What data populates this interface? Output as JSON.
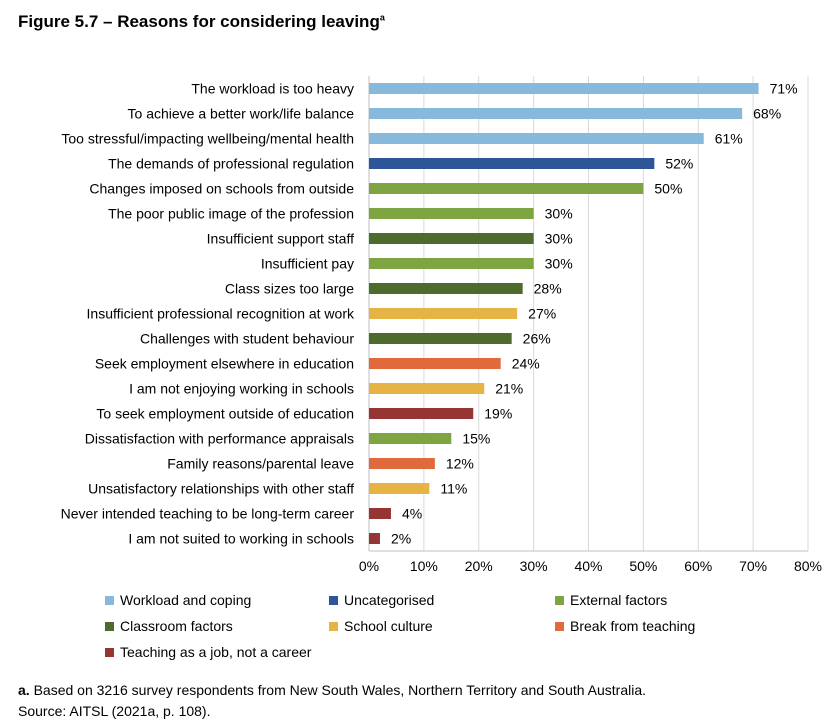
{
  "figure": {
    "title": "Figure 5.7 – Reasons for considering leaving",
    "title_sup": "a"
  },
  "colors": {
    "Workload and coping": "#86b9dc",
    "Uncategorised": "#2e5597",
    "External factors": "#7fa542",
    "Classroom factors": "#4c6b2c",
    "School culture": "#e6b445",
    "Break from teaching": "#e06a3b",
    "Teaching as a job, not a career": "#963534"
  },
  "chart_data": {
    "type": "bar",
    "orientation": "horizontal",
    "categories": [
      "The workload is too heavy",
      "To achieve a better work/life balance",
      "Too stressful/impacting wellbeing/mental health",
      "The demands of professional regulation",
      "Changes imposed on schools from outside",
      "The poor public image of the profession",
      "Insufficient support staff",
      "Insufficient pay",
      "Class sizes too large",
      "Insufficient professional recognition at work",
      "Challenges with student behaviour",
      "Seek employment elsewhere in education",
      "I am not enjoying working in schools",
      "To seek employment outside of education",
      "Dissatisfaction with performance appraisals",
      "Family reasons/parental leave",
      "Unsatisfactory relationships with other staff",
      "Never intended teaching to be long-term career",
      "I am not suited to working in schools"
    ],
    "values": [
      71,
      68,
      61,
      52,
      50,
      30,
      30,
      30,
      28,
      27,
      26,
      24,
      21,
      19,
      15,
      12,
      11,
      4,
      2
    ],
    "value_labels": [
      "71%",
      "68%",
      "61%",
      "52%",
      "50%",
      "30%",
      "30%",
      "30%",
      "28%",
      "27%",
      "26%",
      "24%",
      "21%",
      "19%",
      "15%",
      "12%",
      "11%",
      "4%",
      "2%"
    ],
    "groups": [
      "Workload and coping",
      "Workload and coping",
      "Workload and coping",
      "Uncategorised",
      "External factors",
      "External factors",
      "Classroom factors",
      "External factors",
      "Classroom factors",
      "School culture",
      "Classroom factors",
      "Break from teaching",
      "School culture",
      "Teaching as a job, not a career",
      "External factors",
      "Break from teaching",
      "School culture",
      "Teaching as a job, not a career",
      "Teaching as a job, not a career"
    ],
    "xlim": [
      0,
      80
    ],
    "xticks": [
      0,
      10,
      20,
      30,
      40,
      50,
      60,
      70,
      80
    ],
    "xtick_labels": [
      "0%",
      "10%",
      "20%",
      "30%",
      "40%",
      "50%",
      "60%",
      "70%",
      "80%"
    ],
    "grid": true,
    "legend": {
      "placement": "bottom",
      "entries": [
        "Workload and coping",
        "Uncategorised",
        "External factors",
        "Classroom factors",
        "School culture",
        "Break from teaching",
        "Teaching as a job, not a career"
      ]
    }
  },
  "notes": {
    "label": "a.",
    "text": " Based on 3216 survey respondents from New South Wales, Northern Territory and South Australia.",
    "source": "Source: AITSL (2021a, p. 108)."
  }
}
